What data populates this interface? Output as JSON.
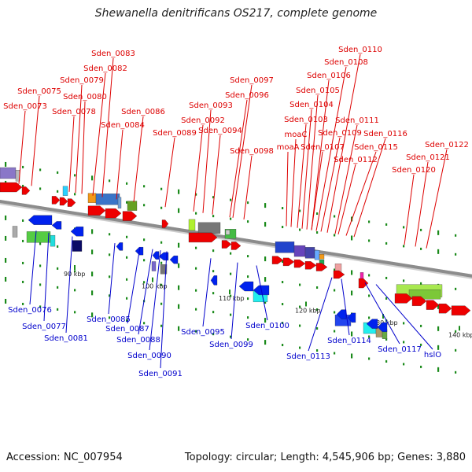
{
  "header": {
    "title": "Shewanella denitrificans OS217, complete genome"
  },
  "footer": {
    "accession": "Accession: NC_007954",
    "summary": "Topology: circular; Length: 4,545,906 bp; Genes: 3,880"
  },
  "colors": {
    "backbone": "#8c8c8c",
    "tick": "#1a8a1a",
    "forward_label": "#dd0000",
    "reverse_label": "#0000cc",
    "forward_arrow": "#ee0000",
    "reverse_arrow": "#0022ee"
  },
  "scale": {
    "ticks": [
      {
        "label": "90 kbp"
      },
      {
        "label": "100 kbp"
      },
      {
        "label": "110 kbp"
      },
      {
        "label": "120 kbp"
      },
      {
        "label": "130 kbp"
      },
      {
        "label": "140 kbp"
      }
    ]
  },
  "forward_genes": [
    "Sden_0073",
    "Sden_0075",
    "Sden_0078",
    "Sden_0079",
    "Sden_0080",
    "Sden_0082",
    "Sden_0083",
    "Sden_0084",
    "Sden_0086",
    "Sden_0089",
    "Sden_0092",
    "Sden_0093",
    "Sden_0094",
    "Sden_0096",
    "Sden_0097",
    "Sden_0098",
    "moaA",
    "moaC",
    "Sden_0103",
    "Sden_0104",
    "Sden_0105",
    "Sden_0106",
    "Sden_0107",
    "Sden_0108",
    "Sden_0109",
    "Sden_0110",
    "Sden_0111",
    "Sden_0112",
    "Sden_0115",
    "Sden_0116",
    "Sden_0120",
    "Sden_0121",
    "Sden_0122"
  ],
  "reverse_genes": [
    "Sden_0076",
    "Sden_0077",
    "Sden_0081",
    "Sden_0085",
    "Sden_0087",
    "Sden_0088",
    "Sden_0090",
    "Sden_0091",
    "Sden_0095",
    "Sden_0099",
    "Sden_0100",
    "Sden_0113",
    "Sden_0114",
    "Sden_0117",
    "hslO"
  ]
}
